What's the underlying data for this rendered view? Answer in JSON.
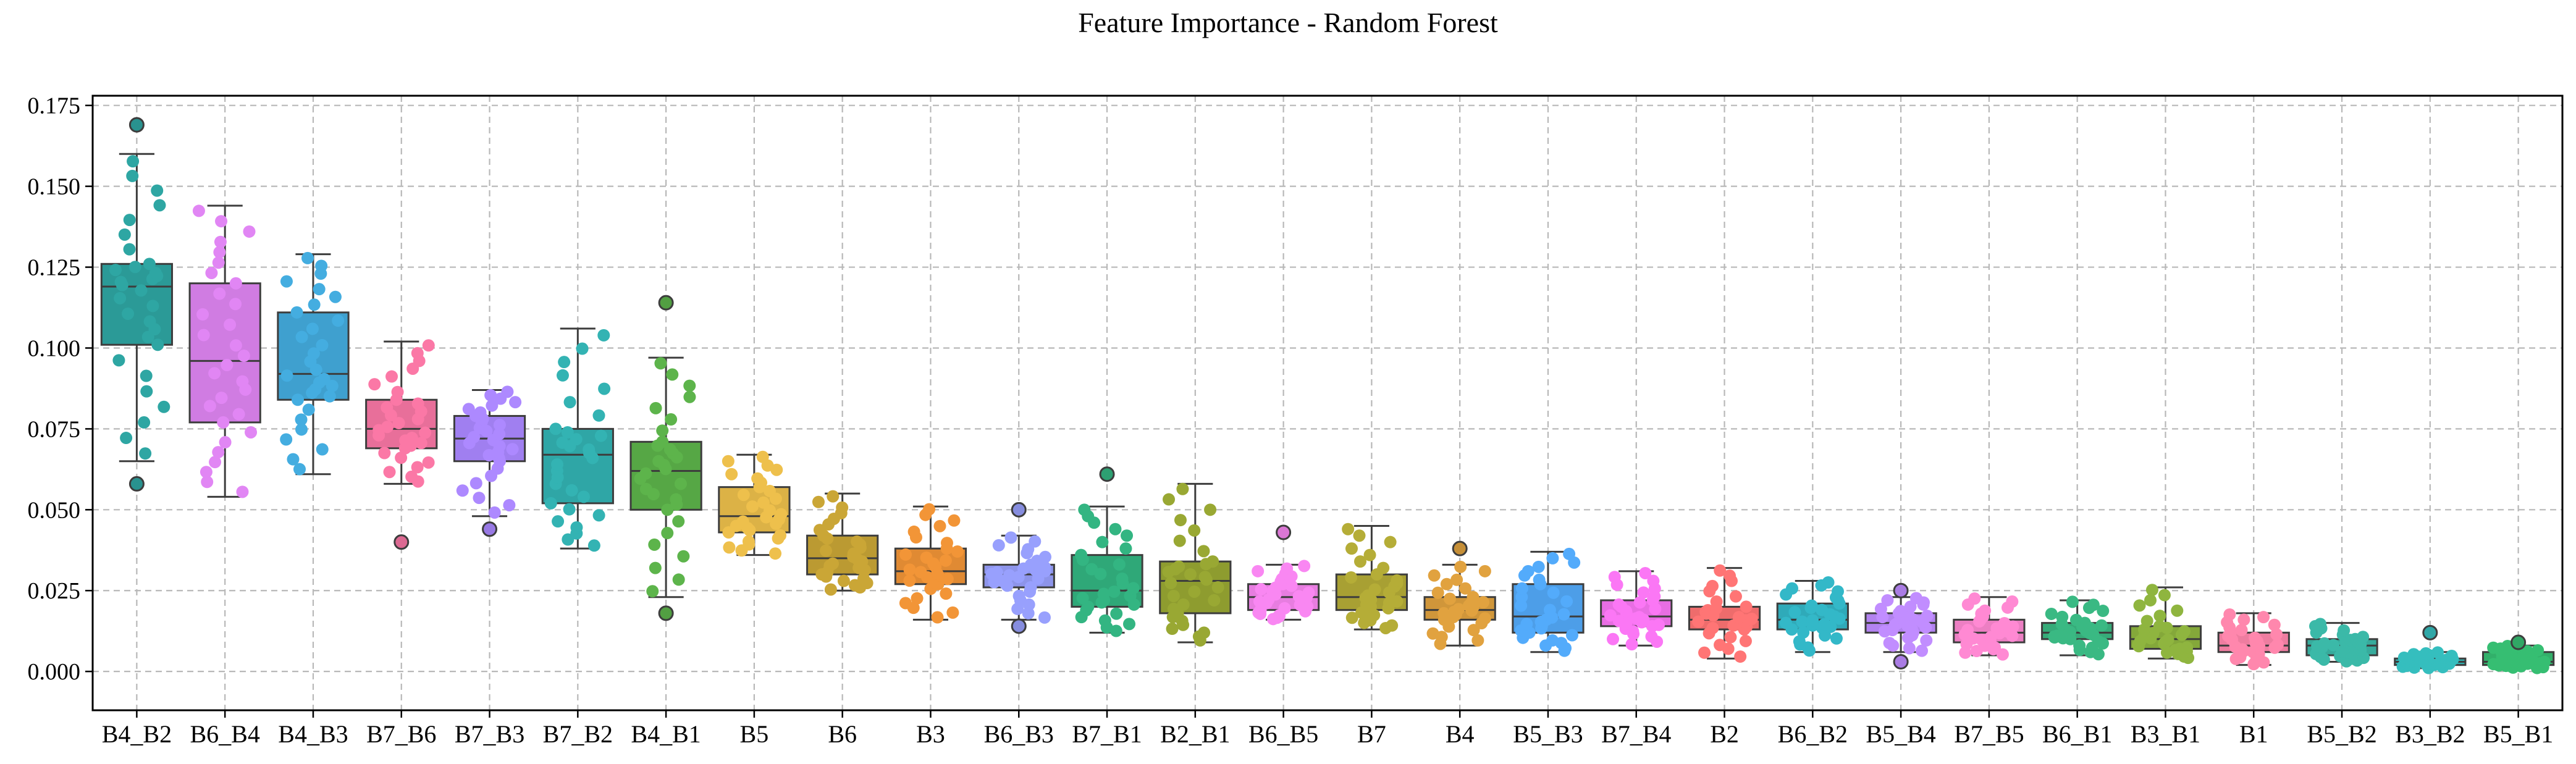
{
  "chart_data": {
    "type": "box",
    "title": "Feature Importance - Random Forest",
    "xlabel": "",
    "ylabel": "",
    "ylim": [
      -0.012,
      0.178
    ],
    "yticks": [
      0.0,
      0.025,
      0.05,
      0.075,
      0.1,
      0.125,
      0.15,
      0.175
    ],
    "ytick_labels": [
      "0.000",
      "0.025",
      "0.050",
      "0.075",
      "0.100",
      "0.125",
      "0.150",
      "0.175"
    ],
    "grid": true,
    "grid_style": "dashed",
    "overlay": "swarm points",
    "categories": [
      "B4_B2",
      "B6_B4",
      "B4_B3",
      "B7_B6",
      "B7_B3",
      "B7_B2",
      "B4_B1",
      "B5",
      "B6",
      "B3",
      "B6_B3",
      "B7_B1",
      "B2_B1",
      "B6_B5",
      "B7",
      "B4",
      "B5_B3",
      "B7_B4",
      "B2",
      "B6_B2",
      "B5_B4",
      "B7_B5",
      "B6_B1",
      "B3_B1",
      "B1",
      "B5_B2",
      "B3_B2",
      "B5_B1"
    ],
    "colors": [
      "#2b9a97",
      "#d07ce2",
      "#3fa0cf",
      "#e86f9a",
      "#a07ff0",
      "#2fa6a6",
      "#56a745",
      "#dcb246",
      "#bb9a32",
      "#e08a33",
      "#8d94ea",
      "#2fa878",
      "#8e9c2f",
      "#e77de0",
      "#a8a033",
      "#d0963a",
      "#4d9ee8",
      "#e86ee3",
      "#ee6c6c",
      "#2faab9",
      "#b383f0",
      "#ec7fc3",
      "#36ab79",
      "#84a83a",
      "#ee7da0",
      "#37ab9c",
      "#31b0b0",
      "#32b06a"
    ],
    "boxes": [
      {
        "whislo": 0.065,
        "q1": 0.101,
        "med": 0.119,
        "q3": 0.126,
        "whishi": 0.16,
        "fliers": [
          0.169,
          0.058
        ]
      },
      {
        "whislo": 0.054,
        "q1": 0.077,
        "med": 0.096,
        "q3": 0.12,
        "whishi": 0.144,
        "fliers": []
      },
      {
        "whislo": 0.061,
        "q1": 0.084,
        "med": 0.092,
        "q3": 0.111,
        "whishi": 0.129,
        "fliers": []
      },
      {
        "whislo": 0.058,
        "q1": 0.069,
        "med": 0.075,
        "q3": 0.084,
        "whishi": 0.102,
        "fliers": [
          0.04
        ]
      },
      {
        "whislo": 0.048,
        "q1": 0.065,
        "med": 0.072,
        "q3": 0.079,
        "whishi": 0.087,
        "fliers": [
          0.044
        ]
      },
      {
        "whislo": 0.038,
        "q1": 0.052,
        "med": 0.067,
        "q3": 0.075,
        "whishi": 0.106,
        "fliers": []
      },
      {
        "whislo": 0.023,
        "q1": 0.05,
        "med": 0.062,
        "q3": 0.071,
        "whishi": 0.097,
        "fliers": [
          0.114,
          0.018
        ]
      },
      {
        "whislo": 0.036,
        "q1": 0.043,
        "med": 0.048,
        "q3": 0.057,
        "whishi": 0.067,
        "fliers": []
      },
      {
        "whislo": 0.025,
        "q1": 0.03,
        "med": 0.035,
        "q3": 0.042,
        "whishi": 0.055,
        "fliers": []
      },
      {
        "whislo": 0.016,
        "q1": 0.027,
        "med": 0.031,
        "q3": 0.038,
        "whishi": 0.051,
        "fliers": []
      },
      {
        "whislo": 0.016,
        "q1": 0.026,
        "med": 0.03,
        "q3": 0.033,
        "whishi": 0.042,
        "fliers": [
          0.05,
          0.014
        ]
      },
      {
        "whislo": 0.012,
        "q1": 0.02,
        "med": 0.025,
        "q3": 0.036,
        "whishi": 0.051,
        "fliers": [
          0.061
        ]
      },
      {
        "whislo": 0.009,
        "q1": 0.018,
        "med": 0.028,
        "q3": 0.034,
        "whishi": 0.058,
        "fliers": []
      },
      {
        "whislo": 0.016,
        "q1": 0.019,
        "med": 0.023,
        "q3": 0.027,
        "whishi": 0.033,
        "fliers": [
          0.043
        ]
      },
      {
        "whislo": 0.013,
        "q1": 0.019,
        "med": 0.023,
        "q3": 0.03,
        "whishi": 0.045,
        "fliers": []
      },
      {
        "whislo": 0.008,
        "q1": 0.016,
        "med": 0.019,
        "q3": 0.023,
        "whishi": 0.033,
        "fliers": [
          0.038
        ]
      },
      {
        "whislo": 0.006,
        "q1": 0.012,
        "med": 0.017,
        "q3": 0.027,
        "whishi": 0.037,
        "fliers": []
      },
      {
        "whislo": 0.008,
        "q1": 0.014,
        "med": 0.017,
        "q3": 0.022,
        "whishi": 0.031,
        "fliers": []
      },
      {
        "whislo": 0.004,
        "q1": 0.013,
        "med": 0.016,
        "q3": 0.02,
        "whishi": 0.032,
        "fliers": []
      },
      {
        "whislo": 0.006,
        "q1": 0.013,
        "med": 0.016,
        "q3": 0.021,
        "whishi": 0.028,
        "fliers": []
      },
      {
        "whislo": 0.006,
        "q1": 0.012,
        "med": 0.015,
        "q3": 0.018,
        "whishi": 0.023,
        "fliers": [
          0.025,
          0.003
        ]
      },
      {
        "whislo": 0.005,
        "q1": 0.009,
        "med": 0.012,
        "q3": 0.016,
        "whishi": 0.023,
        "fliers": []
      },
      {
        "whislo": 0.005,
        "q1": 0.01,
        "med": 0.012,
        "q3": 0.015,
        "whishi": 0.022,
        "fliers": []
      },
      {
        "whislo": 0.004,
        "q1": 0.007,
        "med": 0.01,
        "q3": 0.014,
        "whishi": 0.026,
        "fliers": []
      },
      {
        "whislo": 0.002,
        "q1": 0.006,
        "med": 0.008,
        "q3": 0.012,
        "whishi": 0.018,
        "fliers": []
      },
      {
        "whislo": 0.003,
        "q1": 0.005,
        "med": 0.008,
        "q3": 0.01,
        "whishi": 0.015,
        "fliers": []
      },
      {
        "whislo": 0.001,
        "q1": 0.002,
        "med": 0.003,
        "q3": 0.004,
        "whishi": 0.006,
        "fliers": [
          0.012
        ]
      },
      {
        "whislo": 0.001,
        "q1": 0.002,
        "med": 0.003,
        "q3": 0.006,
        "whishi": 0.008,
        "fliers": [
          0.009
        ]
      }
    ]
  }
}
